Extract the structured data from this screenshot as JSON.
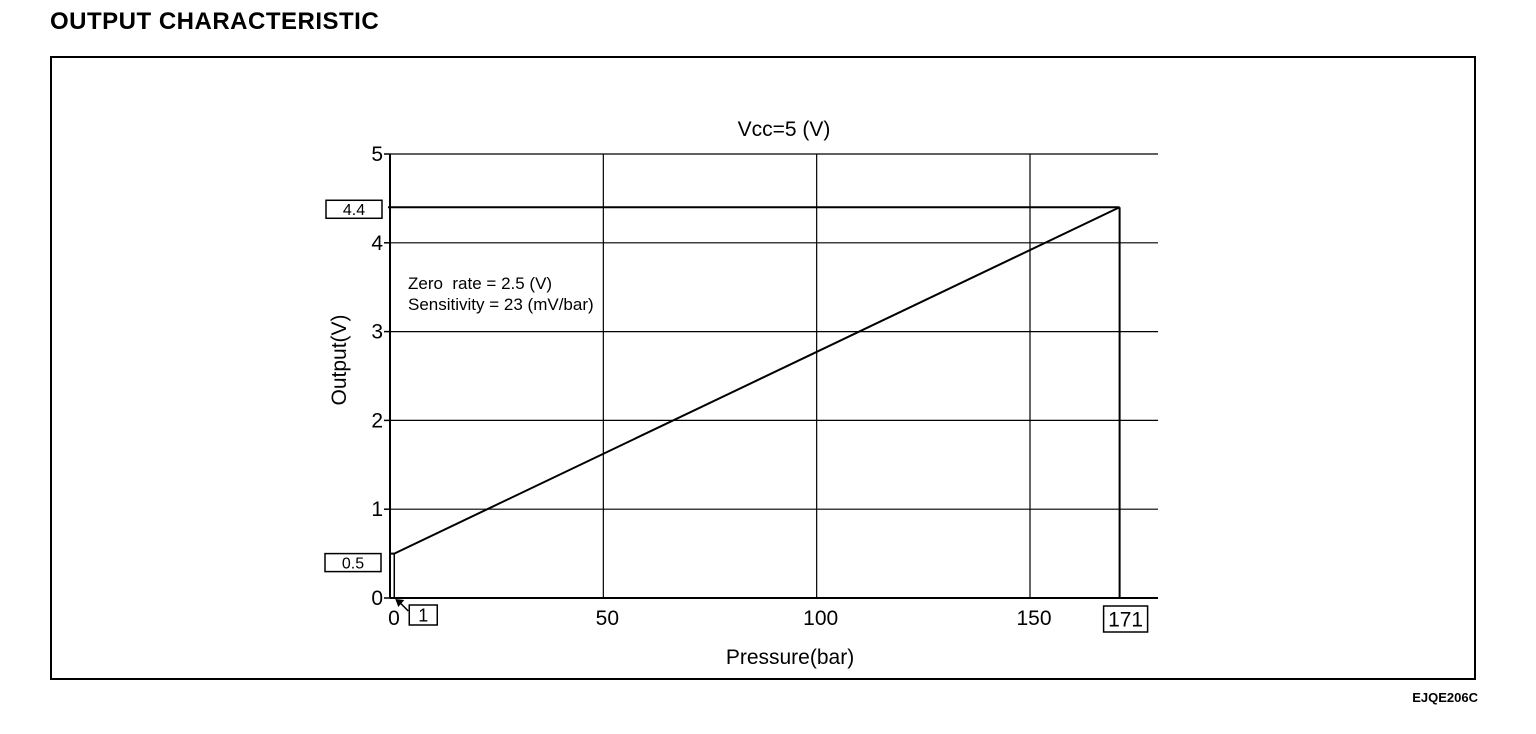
{
  "page": {
    "title": "OUTPUT CHARACTERISTIC",
    "figure_code": "EJQE206C"
  },
  "chart_data": {
    "type": "line",
    "title": "Vcc=5 (V)",
    "xlabel": "Pressure(bar)",
    "ylabel": "Output(V)",
    "xlim": [
      0,
      180
    ],
    "ylim": [
      0,
      5
    ],
    "x_ticks": [
      0,
      50,
      100,
      150
    ],
    "x_tick_labels": [
      "0",
      "50",
      "100",
      "150"
    ],
    "y_ticks": [
      0,
      1,
      2,
      3,
      4,
      5
    ],
    "y_tick_labels": [
      "0",
      "1",
      "2",
      "3",
      "4",
      "5"
    ],
    "grid": true,
    "series": [
      {
        "x": [
          1,
          171
        ],
        "y": [
          0.5,
          4.4
        ]
      }
    ],
    "annotations": {
      "text_lines": [
        "Zero  rate = 2.5 (V)",
        "Sensitivity = 23 (mV/bar)"
      ],
      "boxed_y_start": "0.5",
      "boxed_y_end": "4.4",
      "boxed_x_start": "1",
      "boxed_x_end": "171"
    }
  }
}
